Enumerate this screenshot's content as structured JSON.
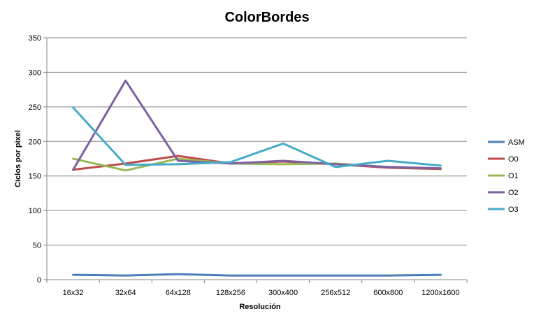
{
  "chart_data": {
    "type": "line",
    "title": "ColorBordes",
    "xlabel": "Resolución",
    "ylabel": "Ciclos por pixel",
    "categories": [
      "16x32",
      "32x64",
      "64x128",
      "128x256",
      "300x400",
      "256x512",
      "600x800",
      "1200x1600"
    ],
    "ylim": [
      0,
      350
    ],
    "yticks": [
      0,
      50,
      100,
      150,
      200,
      250,
      300,
      350
    ],
    "grid": true,
    "legend_position": "right",
    "series": [
      {
        "name": "ASM",
        "color": "#4a7ebb",
        "values": [
          7,
          6,
          8,
          6,
          6,
          6,
          6,
          7
        ]
      },
      {
        "name": "O0",
        "color": "#be4b48",
        "values": [
          159,
          168,
          179,
          168,
          171,
          167,
          162,
          160
        ]
      },
      {
        "name": "O1",
        "color": "#98b954",
        "values": [
          175,
          158,
          175,
          168,
          167,
          168,
          163,
          161
        ]
      },
      {
        "name": "O2",
        "color": "#7d60a0",
        "values": [
          159,
          288,
          172,
          168,
          172,
          167,
          163,
          161
        ]
      },
      {
        "name": "O3",
        "color": "#46aac5",
        "values": [
          249,
          166,
          167,
          170,
          197,
          163,
          172,
          165
        ]
      }
    ]
  }
}
